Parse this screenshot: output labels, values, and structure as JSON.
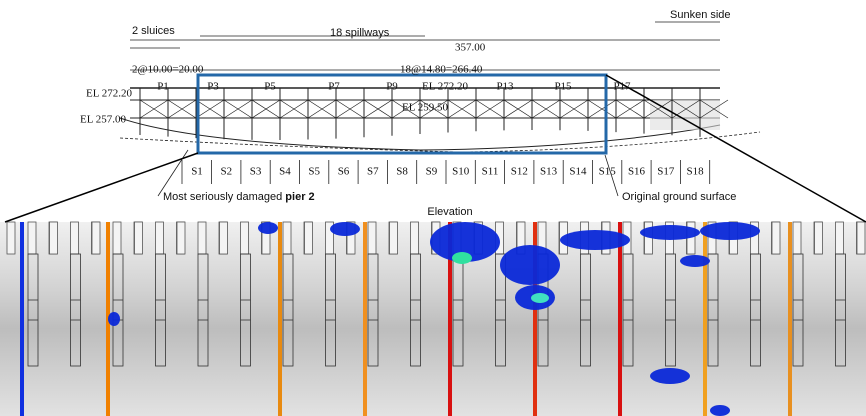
{
  "header": {
    "sluices": "2 sluices",
    "spillways": "18 spillways",
    "sunken": "Sunken side"
  },
  "dimensions": {
    "total": "357.00",
    "sluice_span": "2@10.00=20.00",
    "spillway_span": "18@14.80=266.40"
  },
  "elevations": {
    "left_top": "EL 272.20",
    "left_bottom": "EL 257.00",
    "middle_top": "EL 272.20",
    "middle_low": "EL 259.50"
  },
  "piers": [
    "P1",
    "P3",
    "P5",
    "P7",
    "P9",
    "P13",
    "P15",
    "P17"
  ],
  "spans": [
    "S1",
    "S2",
    "S3",
    "S4",
    "S5",
    "S6",
    "S7",
    "S8",
    "S9",
    "S10",
    "S11",
    "S12",
    "S13",
    "S14",
    "S15",
    "S16",
    "S17",
    "S18"
  ],
  "annotations": {
    "damage": [
      "Most seriously damaged",
      "pier 2"
    ],
    "ground": "Original ground surface",
    "elevation": "Elevation"
  }
}
